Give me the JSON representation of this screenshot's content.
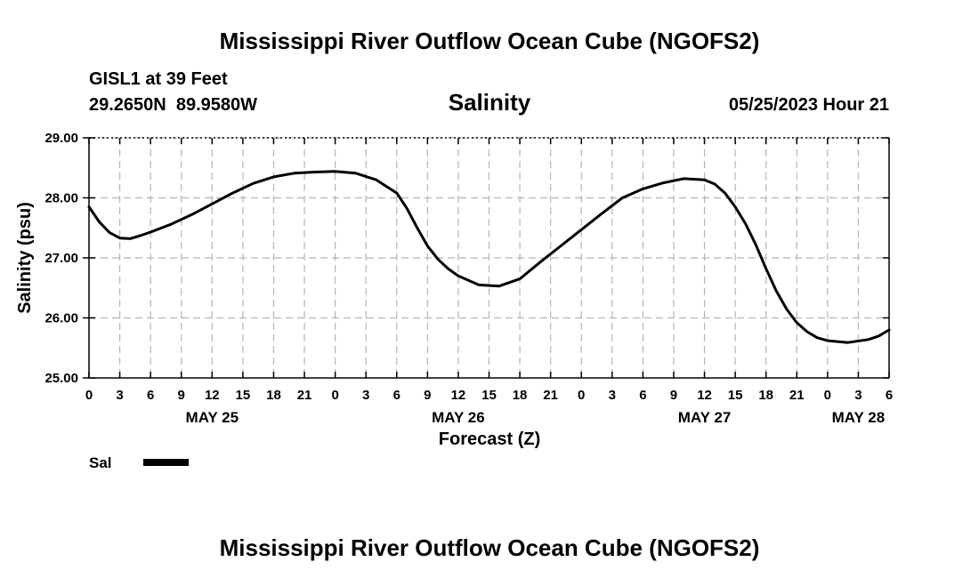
{
  "header": {
    "title": "Mississippi River Outflow Ocean Cube (NGOFS2)",
    "station": "GISL1 at 39 Feet",
    "coords": "29.2650N  89.9580W",
    "variable": "Salinity",
    "date": "05/25/2023 Hour 21"
  },
  "footer": {
    "title": "Mississippi River Outflow Ocean Cube (NGOFS2)"
  },
  "legend": {
    "label": "Sal",
    "color": "#000000"
  },
  "chart_data": {
    "type": "line",
    "title": "Salinity",
    "xlabel": "Forecast (Z)",
    "ylabel": "Salinity (psu)",
    "xlim": [
      0,
      78
    ],
    "ylim": [
      25.0,
      29.0
    ],
    "grid": true,
    "y_ticks": [
      25.0,
      26.0,
      27.0,
      28.0,
      29.0
    ],
    "y_tick_labels": [
      "25.00",
      "26.00",
      "27.00",
      "28.00",
      "29.00"
    ],
    "x_ticks": [
      0,
      3,
      6,
      9,
      12,
      15,
      18,
      21,
      24,
      27,
      30,
      33,
      36,
      39,
      42,
      45,
      48,
      51,
      54,
      57,
      60,
      63,
      66,
      69,
      72,
      75,
      78
    ],
    "x_tick_labels": [
      "0",
      "3",
      "6",
      "9",
      "12",
      "15",
      "18",
      "21",
      "0",
      "3",
      "6",
      "9",
      "12",
      "15",
      "18",
      "21",
      "0",
      "3",
      "6",
      "9",
      "12",
      "15",
      "18",
      "21",
      "0",
      "3",
      "6"
    ],
    "date_labels": [
      {
        "x": 12,
        "text": "MAY 25"
      },
      {
        "x": 36,
        "text": "MAY 26"
      },
      {
        "x": 60,
        "text": "MAY 27"
      },
      {
        "x": 75,
        "text": "MAY 28"
      }
    ],
    "series": [
      {
        "name": "Sal",
        "color": "#000000",
        "x": [
          0,
          1,
          2,
          3,
          4,
          5,
          6,
          8,
          10,
          12,
          14,
          16,
          18,
          20,
          22,
          24,
          26,
          28,
          30,
          31,
          32,
          33,
          34,
          35,
          36,
          38,
          40,
          42,
          44,
          46,
          48,
          50,
          52,
          54,
          56,
          58,
          60,
          61,
          62,
          63,
          64,
          65,
          66,
          67,
          68,
          69,
          70,
          71,
          72,
          74,
          76,
          77,
          78
        ],
        "values": [
          27.85,
          27.6,
          27.42,
          27.33,
          27.32,
          27.37,
          27.43,
          27.56,
          27.72,
          27.9,
          28.08,
          28.24,
          28.35,
          28.41,
          28.43,
          28.44,
          28.41,
          28.3,
          28.08,
          27.82,
          27.5,
          27.2,
          26.98,
          26.82,
          26.7,
          26.55,
          26.53,
          26.65,
          26.93,
          27.2,
          27.47,
          27.74,
          28.0,
          28.15,
          28.25,
          28.32,
          28.3,
          28.23,
          28.08,
          27.85,
          27.57,
          27.22,
          26.82,
          26.45,
          26.15,
          25.92,
          25.77,
          25.67,
          25.62,
          25.59,
          25.64,
          25.7,
          25.8
        ]
      }
    ]
  }
}
